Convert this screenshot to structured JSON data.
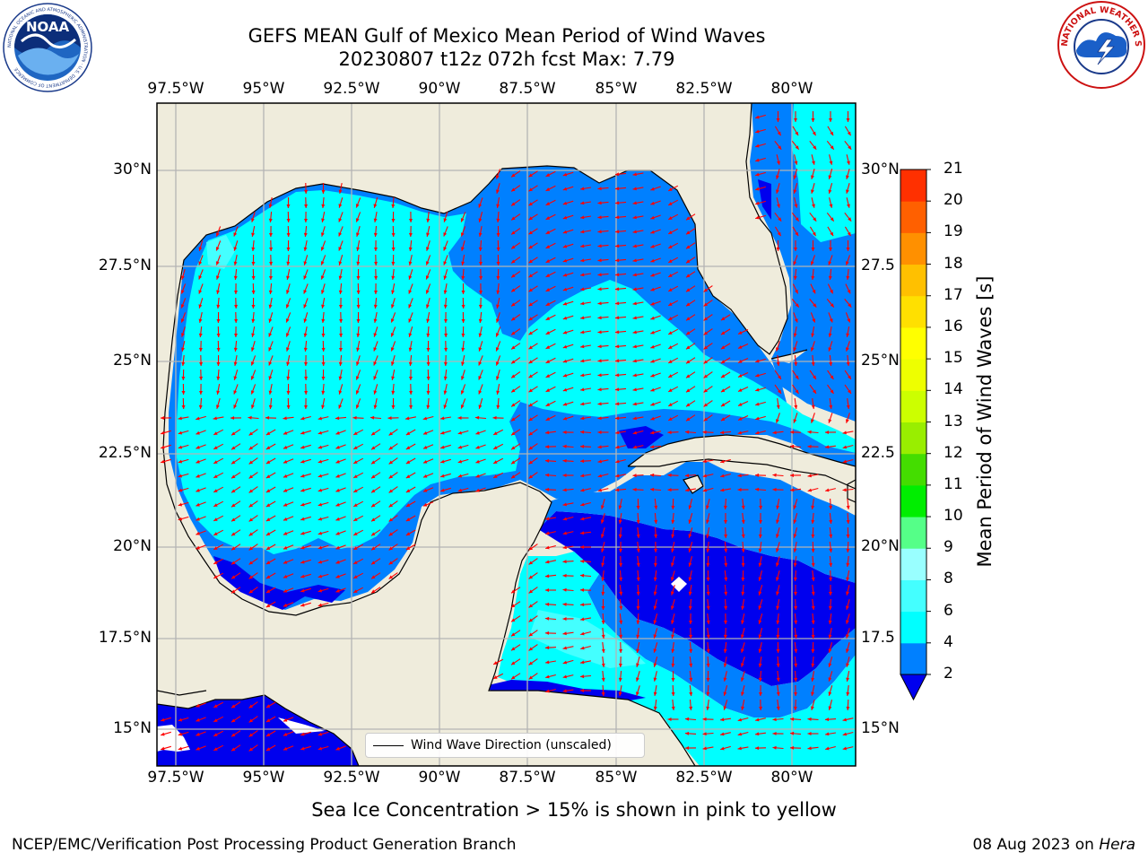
{
  "title": {
    "line1": "GEFS MEAN Gulf of Mexico Mean Period of Wind Waves",
    "line2": "20230807 t12z 072h fcst   Max: 7.79"
  },
  "logos": {
    "left": {
      "name": "noaa-logo",
      "text": "NOAA",
      "ring_text": "NATIONAL OCEANIC AND ATMOSPHERIC ADMINISTRATION · U.S. DEPARTMENT OF COMMERCE"
    },
    "right": {
      "name": "nws-logo",
      "ring_text": "NATIONAL WEATHER SERVICE"
    }
  },
  "map": {
    "lon_labels": [
      "97.5°W",
      "95°W",
      "92.5°W",
      "90°W",
      "87.5°W",
      "85°W",
      "82.5°W",
      "80°W"
    ],
    "lat_labels_left": [
      "30°N",
      "27.5°N",
      "25°N",
      "22.5°N",
      "20°N",
      "17.5°N",
      "15°N"
    ],
    "lat_labels_right": [
      "30°N",
      "27.5",
      "25°N",
      "22.5",
      "20°N",
      "17.5",
      "15°N"
    ],
    "legend_label": "Wind Wave Direction (unscaled)",
    "colors": {
      "land": "#efecdc",
      "coast": "#000000",
      "grid": "#b4b4b4",
      "arrow": "#ff0000",
      "level_2_4": "#0080ff",
      "level_4_6": "#00ffff",
      "level_6_8": "#44ffff",
      "level_below_2": "#0000ee",
      "no_data": "#ffffff"
    }
  },
  "colorbar": {
    "label": "Mean Period of Wind Waves [s]",
    "ticks": [
      "2",
      "4",
      "6",
      "8",
      "9",
      "10",
      "11",
      "12",
      "13",
      "14",
      "15",
      "16",
      "17",
      "18",
      "19",
      "20",
      "21"
    ],
    "colors": [
      "#0080ff",
      "#00ffff",
      "#44ffff",
      "#99ffff",
      "#55ff88",
      "#00ee00",
      "#44dd00",
      "#99ee00",
      "#ccff00",
      "#eeff00",
      "#ffff00",
      "#ffe000",
      "#ffc000",
      "#ff9000",
      "#ff6000",
      "#ff3000",
      "#ff0000"
    ]
  },
  "sea_ice_note": "Sea Ice Concentration > 15% is shown in pink to yellow",
  "footer": {
    "left": "NCEP/EMC/Verification Post Processing Product Generation Branch",
    "date": "08 Aug 2023 on ",
    "host": "Hera"
  }
}
